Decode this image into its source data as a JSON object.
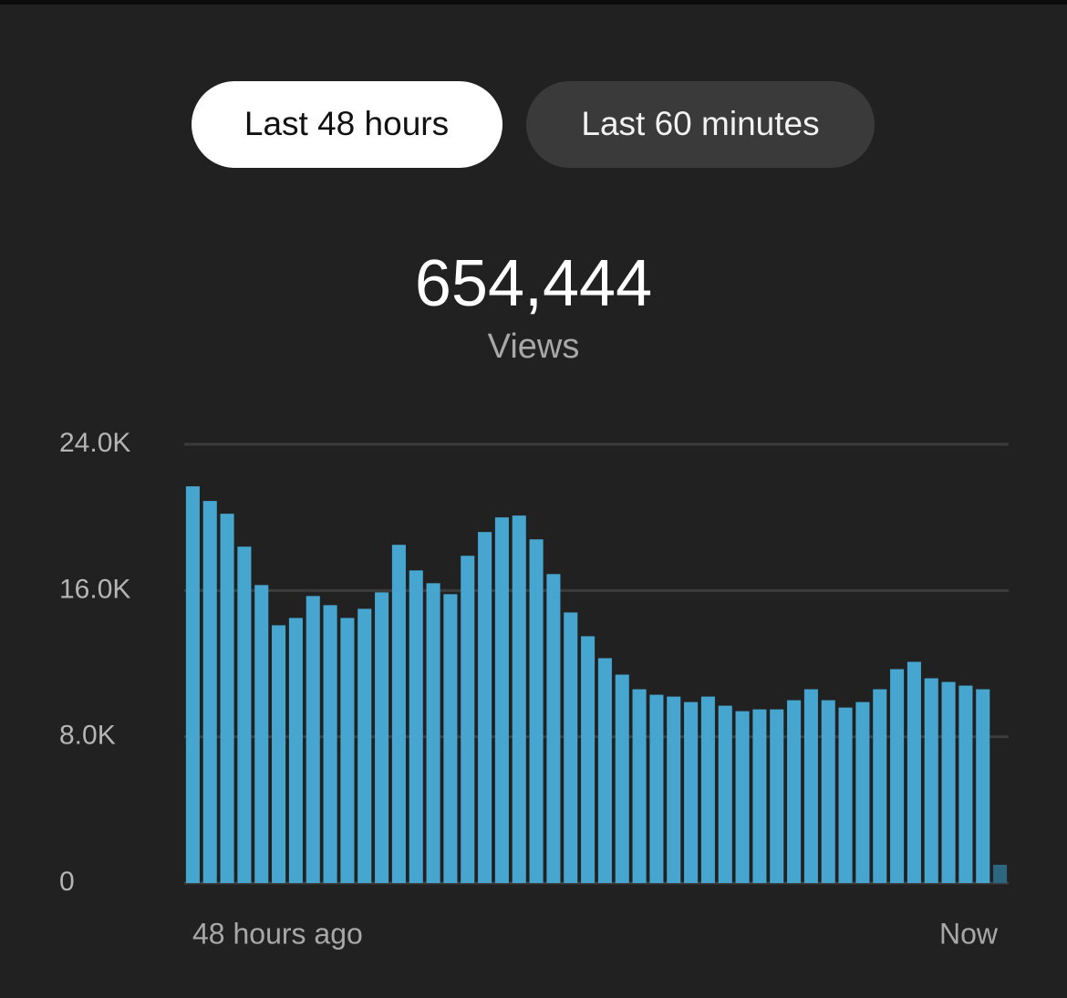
{
  "chart_data": {
    "type": "bar",
    "buttons": [
      "Last 48 hours",
      "Last 60 minutes"
    ],
    "title": "654,444",
    "subtitle": "Views",
    "x_start_label": "48 hours ago",
    "x_end_label": "Now",
    "values": [
      21700,
      20900,
      20200,
      18400,
      16300,
      14100,
      14500,
      15700,
      15200,
      14500,
      15000,
      15900,
      18500,
      17100,
      16400,
      15800,
      17900,
      19200,
      20000,
      20100,
      18800,
      16900,
      14800,
      13500,
      12300,
      11400,
      10600,
      10300,
      10200,
      9900,
      10200,
      9700,
      9400,
      9500,
      9500,
      10000,
      10600,
      10000,
      9600,
      9900,
      10600,
      11700,
      12100,
      11200,
      11000,
      10800,
      10600,
      1000
    ],
    "color": "#46a6cf",
    "last_bar_color": "#2c6680",
    "ylim": [
      0,
      24000
    ],
    "yticks": [
      0,
      {
        "value": 8000,
        "label": "8.0K"
      },
      {
        "value": 16000,
        "label": "16.0K"
      },
      {
        "value": 24000,
        "label": "24.0K"
      }
    ],
    "grid": true
  }
}
